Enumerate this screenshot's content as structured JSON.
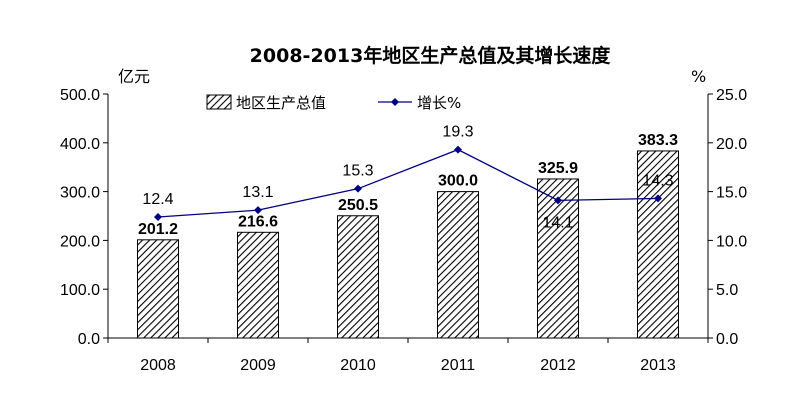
{
  "chart_data": {
    "type": "bar",
    "title": "2008-2013年地区生产总值及其增长速度",
    "categories": [
      "2008",
      "2009",
      "2010",
      "2011",
      "2012",
      "2013"
    ],
    "series": [
      {
        "name": "地区生产总值",
        "type": "bar",
        "axis": "left",
        "values": [
          201.2,
          216.6,
          250.5,
          300.0,
          325.9,
          383.3
        ],
        "labels": [
          "201.2",
          "216.6",
          "250.5",
          "300.0",
          "325.9",
          "383.3"
        ]
      },
      {
        "name": "增长%",
        "type": "line",
        "axis": "right",
        "values": [
          12.4,
          13.1,
          15.3,
          19.3,
          14.1,
          14.3
        ],
        "labels": [
          "12.4",
          "13.1",
          "15.3",
          "19.3",
          "14.1",
          "14.3"
        ]
      }
    ],
    "y_left": {
      "unit": "亿元",
      "range": [
        0,
        500
      ],
      "ticks": [
        "0.0",
        "100.0",
        "200.0",
        "300.0",
        "400.0",
        "500.0"
      ]
    },
    "y_right": {
      "unit": "%",
      "range": [
        0,
        25
      ],
      "ticks": [
        "0.0",
        "5.0",
        "10.0",
        "15.0",
        "20.0",
        "25.0"
      ]
    },
    "grid": false,
    "legend_position": "top-center",
    "colors": {
      "bar_fill": "#ffffff",
      "bar_hatch": "#000000",
      "line": "#000080",
      "marker": "#000080"
    }
  }
}
